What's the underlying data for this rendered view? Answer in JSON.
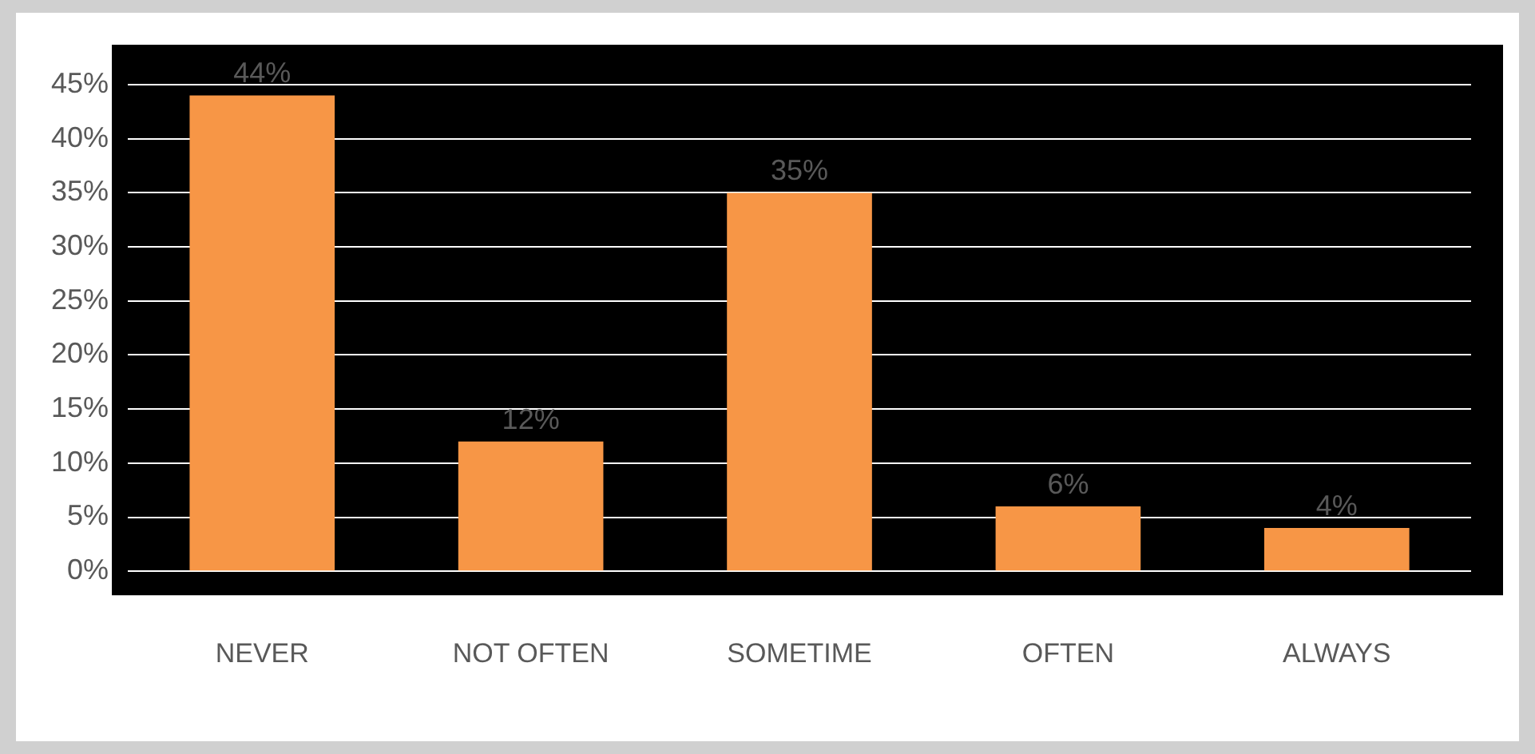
{
  "chart_data": {
    "type": "bar",
    "categories": [
      "NEVER",
      "NOT OFTEN",
      "SOMETIME",
      "OFTEN",
      "ALWAYS"
    ],
    "values": [
      44,
      12,
      35,
      6,
      4
    ],
    "value_labels": [
      "44%",
      "12%",
      "35%",
      "6%",
      "4%"
    ],
    "color": "#f79646",
    "ylim": [
      0,
      45
    ],
    "yticks": [
      {
        "value": 0,
        "label": "0%"
      },
      {
        "value": 5,
        "label": "5%"
      },
      {
        "value": 10,
        "label": "10%"
      },
      {
        "value": 15,
        "label": "15%"
      },
      {
        "value": 20,
        "label": "20%"
      },
      {
        "value": 25,
        "label": "25%"
      },
      {
        "value": 30,
        "label": "30%"
      },
      {
        "value": 35,
        "label": "35%"
      },
      {
        "value": 40,
        "label": "40%"
      },
      {
        "value": 45,
        "label": "45%"
      }
    ],
    "grid": "y",
    "legend": false
  }
}
